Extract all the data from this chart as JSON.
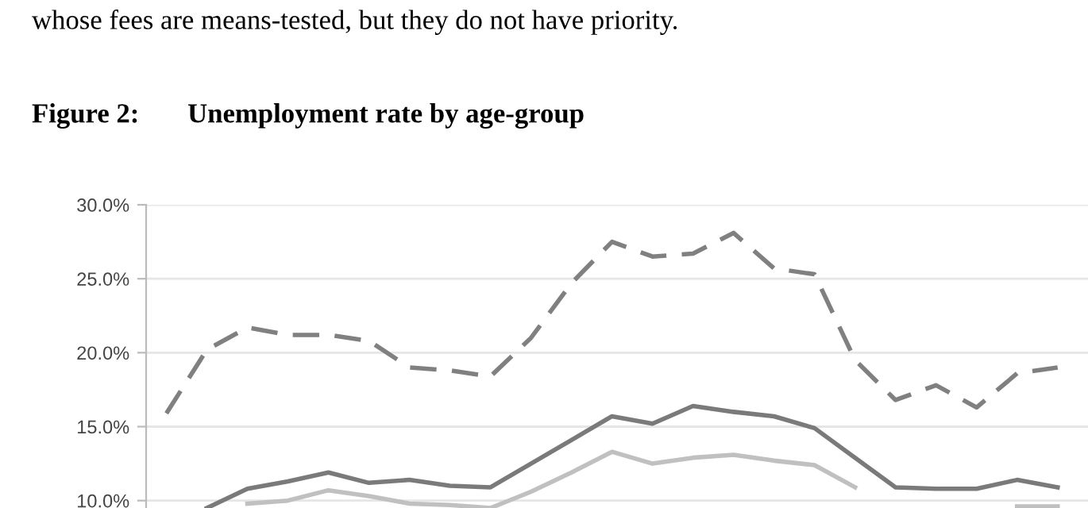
{
  "chart_data": {
    "type": "line",
    "title": "Figure 2:       Unemployment rate by age-group",
    "annotations": [
      "whose fees are means-tested, but they do not have priority."
    ],
    "categories": [
      null,
      null,
      null,
      null,
      null,
      null,
      null,
      null,
      null,
      null,
      null,
      null,
      null,
      null,
      null,
      null,
      null,
      null,
      null,
      null,
      null,
      null,
      null
    ],
    "series": [
      {
        "color": "#808080",
        "line_style": "dashed",
        "values": [
          15.9,
          20.2,
          21.7,
          21.2,
          21.2,
          20.8,
          19.0,
          18.8,
          18.4,
          21.0,
          24.7,
          27.5,
          26.5,
          26.7,
          28.1,
          25.7,
          25.3,
          19.5,
          16.8,
          17.8,
          16.3,
          18.6,
          19.0
        ]
      },
      {
        "color": "#7a7a7a",
        "line_style": "solid",
        "values": [
          null,
          9.5,
          10.8,
          11.3,
          11.9,
          11.2,
          11.4,
          11.0,
          10.9,
          12.5,
          14.1,
          15.7,
          15.2,
          16.4,
          16.0,
          15.7,
          14.9,
          12.9,
          10.9,
          10.8,
          10.8,
          11.4,
          10.9
        ]
      },
      {
        "color": "#c0c0c0",
        "line_style": "solid",
        "values": [
          null,
          null,
          9.8,
          10.0,
          10.7,
          10.3,
          9.8,
          9.7,
          9.5,
          10.6,
          11.9,
          13.3,
          12.5,
          12.9,
          13.1,
          12.7,
          12.4,
          10.9,
          null,
          null,
          null,
          9.6,
          9.6
        ]
      }
    ],
    "ylim": [
      9.5,
      30
    ],
    "yticks": [
      {
        "value": 10,
        "label": "10.0%"
      },
      {
        "value": 15,
        "label": "15.0%"
      },
      {
        "value": 20,
        "label": "20.0%"
      },
      {
        "value": 25,
        "label": "25.0%"
      },
      {
        "value": 30,
        "label": "30.0%"
      }
    ],
    "grid": "y",
    "tick_labels": "y"
  }
}
